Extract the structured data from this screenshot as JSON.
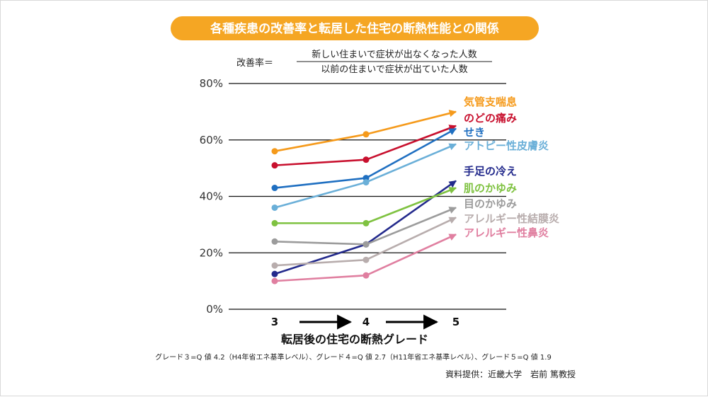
{
  "title": "各種疾患の改善率と転居した住宅の断熱性能との関係",
  "formula": {
    "prefix": "改善率＝",
    "numerator": "新しい住まいで症状が出なくなった人数",
    "denominator": "以前の住まいで症状が出ていた人数"
  },
  "note": "グレード３=Q 値 4.2（H4年省エネ基準レベル）、グレード４=Q 値 2.7（H11年省エネ基準レベル）、グレード５=Q 値 1.9",
  "credit": "資料提供：近畿大学　岩前 篤教授",
  "colors": {
    "title_bg": "#f5a623",
    "gridline": "#111111"
  },
  "chart_data": {
    "type": "line",
    "x": [
      "3",
      "4",
      "5"
    ],
    "xlabel": "転居後の住宅の断熱グレード",
    "ylabel": "",
    "ylim": [
      0,
      80
    ],
    "yticks": [
      "0%",
      "20%",
      "40%",
      "60%",
      "80%"
    ],
    "ytick_values": [
      0,
      20,
      40,
      60,
      80
    ],
    "grid": true,
    "legend": "right, labels at line ends",
    "series": [
      {
        "name": "気管支喘息",
        "values": [
          56,
          62,
          70
        ],
        "color": "#f59a1b"
      },
      {
        "name": "のどの痛み",
        "values": [
          51,
          53,
          65
        ],
        "color": "#c8102e"
      },
      {
        "name": "せき",
        "values": [
          43,
          46.5,
          64
        ],
        "color": "#1f6fc1"
      },
      {
        "name": "アトピー性皮膚炎",
        "values": [
          36,
          45,
          58.5
        ],
        "color": "#6aafd8"
      },
      {
        "name": "手足の冷え",
        "values": [
          12.5,
          23,
          45.5
        ],
        "color": "#232a8c"
      },
      {
        "name": "肌のかゆみ",
        "values": [
          30.5,
          30.5,
          43
        ],
        "color": "#7fc241"
      },
      {
        "name": "目のかゆみ",
        "values": [
          24,
          23,
          36
        ],
        "color": "#9c9c9c"
      },
      {
        "name": "アレルギー性結膜炎",
        "values": [
          15.5,
          17.5,
          32.5
        ],
        "color": "#b8adad"
      },
      {
        "name": "アレルギー性鼻炎",
        "values": [
          10,
          12,
          26.5
        ],
        "color": "#e07fa0"
      }
    ]
  }
}
